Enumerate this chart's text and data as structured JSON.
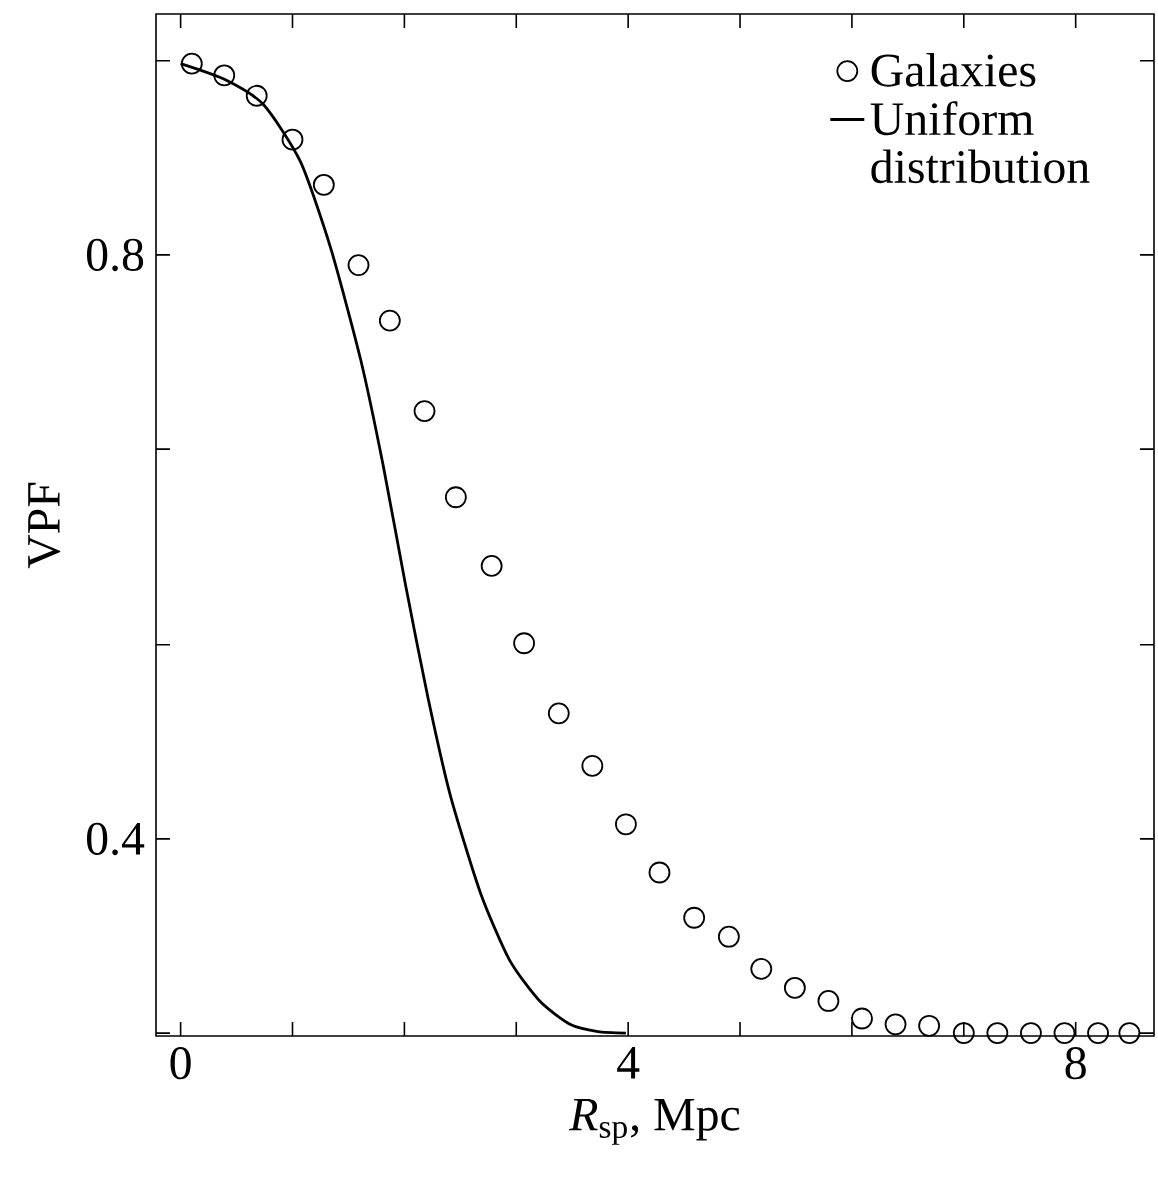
{
  "chart_data": {
    "type": "scatter",
    "xlabel": "*R*$_{sp}$, Mpc",
    "ylabel": "VPF",
    "xlim": [
      -0.22,
      8.7
    ],
    "ylim": [
      0.265,
      0.965
    ],
    "xticks": [
      0,
      {
        "value": 1,
        "label": null
      },
      {
        "value": 2,
        "label": null
      },
      {
        "value": 3,
        "label": null
      },
      4,
      {
        "value": 5,
        "label": null
      },
      {
        "value": 6,
        "label": null
      },
      {
        "value": 7,
        "label": null
      },
      8
    ],
    "yticks": [
      {
        "value": 0.267,
        "label": null
      },
      0.4,
      {
        "value": 0.533,
        "label": null
      },
      {
        "value": 0.667,
        "label": null
      },
      0.8,
      {
        "value": 0.933,
        "label": null
      }
    ],
    "legend": "top right",
    "grid": false,
    "series": [
      {
        "name": "Galaxies",
        "marker": "circle",
        "color": "#000000",
        "x": [
          0.1,
          0.39,
          0.68,
          1.0,
          1.28,
          1.59,
          1.87,
          2.18,
          2.46,
          2.78,
          3.07,
          3.38,
          3.68,
          3.98,
          4.28,
          4.59,
          4.9,
          5.19,
          5.49,
          5.79,
          6.09,
          6.39,
          6.69,
          7.0,
          7.3,
          7.6,
          7.9,
          8.2,
          8.48
        ],
        "values": [
          0.931,
          0.923,
          0.909,
          0.879,
          0.848,
          0.793,
          0.755,
          0.693,
          0.634,
          0.587,
          0.534,
          0.486,
          0.45,
          0.41,
          0.377,
          0.346,
          0.333,
          0.311,
          0.298,
          0.289,
          0.277,
          0.273,
          0.272,
          0.267,
          0.267,
          0.267,
          0.267,
          0.267,
          0.267
        ]
      },
      {
        "name": "Uniform distribution",
        "type": "line",
        "marker": "none",
        "line_style": "solid",
        "color": "#000000",
        "x": [
          0,
          0.4,
          0.74,
          1.07,
          1.34,
          1.61,
          1.81,
          2.01,
          2.21,
          2.41,
          2.68,
          2.94,
          3.21,
          3.48,
          3.73,
          3.98
        ],
        "values": [
          0.931,
          0.92,
          0.903,
          0.864,
          0.805,
          0.728,
          0.656,
          0.574,
          0.497,
          0.43,
          0.363,
          0.317,
          0.289,
          0.273,
          0.268,
          0.267
        ]
      }
    ]
  }
}
